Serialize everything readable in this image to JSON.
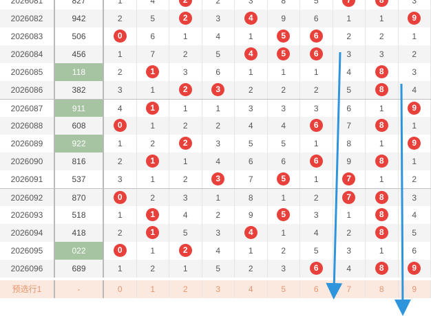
{
  "table": {
    "columns": [
      "0",
      "1",
      "2",
      "3",
      "4",
      "5",
      "6",
      "7",
      "8",
      "9"
    ],
    "rows": [
      {
        "issue": "2026081",
        "code": "827",
        "hl": false,
        "cells": [
          "1",
          "4",
          "2",
          "2",
          "3",
          "8",
          "5",
          "7",
          "8",
          "3"
        ],
        "hits": [
          2,
          7,
          8
        ]
      },
      {
        "issue": "2026082",
        "code": "942",
        "hl": false,
        "cells": [
          "2",
          "5",
          "2",
          "3",
          "4",
          "9",
          "6",
          "1",
          "1",
          "9"
        ],
        "hits": [
          2,
          4,
          9
        ]
      },
      {
        "issue": "2026083",
        "code": "506",
        "hl": false,
        "cells": [
          "0",
          "6",
          "1",
          "4",
          "1",
          "5",
          "6",
          "2",
          "2",
          "1"
        ],
        "hits": [
          0,
          5,
          6
        ]
      },
      {
        "issue": "2026084",
        "code": "456",
        "hl": false,
        "cells": [
          "1",
          "7",
          "2",
          "5",
          "4",
          "5",
          "6",
          "3",
          "3",
          "2"
        ],
        "hits": [
          4,
          5,
          6
        ]
      },
      {
        "issue": "2026085",
        "code": "118",
        "hl": true,
        "cells": [
          "2",
          "1",
          "3",
          "6",
          "1",
          "1",
          "1",
          "4",
          "8",
          "3"
        ],
        "hits": [
          1,
          8
        ]
      },
      {
        "issue": "2026086",
        "code": "382",
        "hl": false,
        "cells": [
          "3",
          "1",
          "2",
          "3",
          "2",
          "2",
          "2",
          "5",
          "8",
          "4"
        ],
        "hits": [
          2,
          3,
          8
        ]
      },
      {
        "issue": "2026087",
        "code": "911",
        "hl": true,
        "cells": [
          "4",
          "1",
          "1",
          "1",
          "3",
          "3",
          "3",
          "6",
          "1",
          "9"
        ],
        "hits": [
          1,
          9
        ]
      },
      {
        "issue": "2026088",
        "code": "608",
        "hl": false,
        "cells": [
          "0",
          "1",
          "2",
          "2",
          "4",
          "4",
          "6",
          "7",
          "8",
          "1"
        ],
        "hits": [
          0,
          6,
          8
        ]
      },
      {
        "issue": "2026089",
        "code": "922",
        "hl": true,
        "cells": [
          "1",
          "2",
          "2",
          "3",
          "5",
          "5",
          "1",
          "8",
          "1",
          "9"
        ],
        "hits": [
          2,
          9
        ]
      },
      {
        "issue": "2026090",
        "code": "816",
        "hl": false,
        "cells": [
          "2",
          "1",
          "1",
          "4",
          "6",
          "6",
          "6",
          "9",
          "8",
          "1"
        ],
        "hits": [
          1,
          6,
          8
        ]
      },
      {
        "issue": "2026091",
        "code": "537",
        "hl": false,
        "cells": [
          "3",
          "1",
          "2",
          "3",
          "7",
          "5",
          "1",
          "7",
          "1",
          "2"
        ],
        "hits": [
          3,
          5,
          7
        ]
      },
      {
        "issue": "2026092",
        "code": "870",
        "hl": false,
        "cells": [
          "0",
          "2",
          "3",
          "1",
          "8",
          "1",
          "2",
          "7",
          "8",
          "3"
        ],
        "hits": [
          0,
          7,
          8
        ]
      },
      {
        "issue": "2026093",
        "code": "518",
        "hl": false,
        "cells": [
          "1",
          "1",
          "4",
          "2",
          "9",
          "5",
          "3",
          "1",
          "8",
          "4"
        ],
        "hits": [
          1,
          5,
          8
        ]
      },
      {
        "issue": "2026094",
        "code": "418",
        "hl": false,
        "cells": [
          "2",
          "1",
          "5",
          "3",
          "4",
          "1",
          "4",
          "2",
          "8",
          "5"
        ],
        "hits": [
          1,
          4,
          8
        ]
      },
      {
        "issue": "2026095",
        "code": "022",
        "hl": true,
        "cells": [
          "0",
          "1",
          "2",
          "4",
          "1",
          "2",
          "5",
          "3",
          "1",
          "6"
        ],
        "hits": [
          0,
          2
        ]
      },
      {
        "issue": "2026096",
        "code": "689",
        "hl": false,
        "cells": [
          "1",
          "2",
          "1",
          "5",
          "2",
          "3",
          "6",
          "4",
          "8",
          "9"
        ],
        "hits": [
          6,
          8,
          9
        ]
      }
    ],
    "group_starts": [
      0,
      6,
      11
    ],
    "footer": {
      "issue": "预选行1",
      "code": "-",
      "cells": [
        "0",
        "1",
        "2",
        "3",
        "4",
        "5",
        "6",
        "7",
        "8",
        "9"
      ]
    }
  },
  "colors": {
    "hit_ball": "#e8403a",
    "code_highlight": "#a6c3a2",
    "arrow": "#2e95dc",
    "footer_bg": "#fbe9df",
    "footer_text": "#e6956c"
  }
}
